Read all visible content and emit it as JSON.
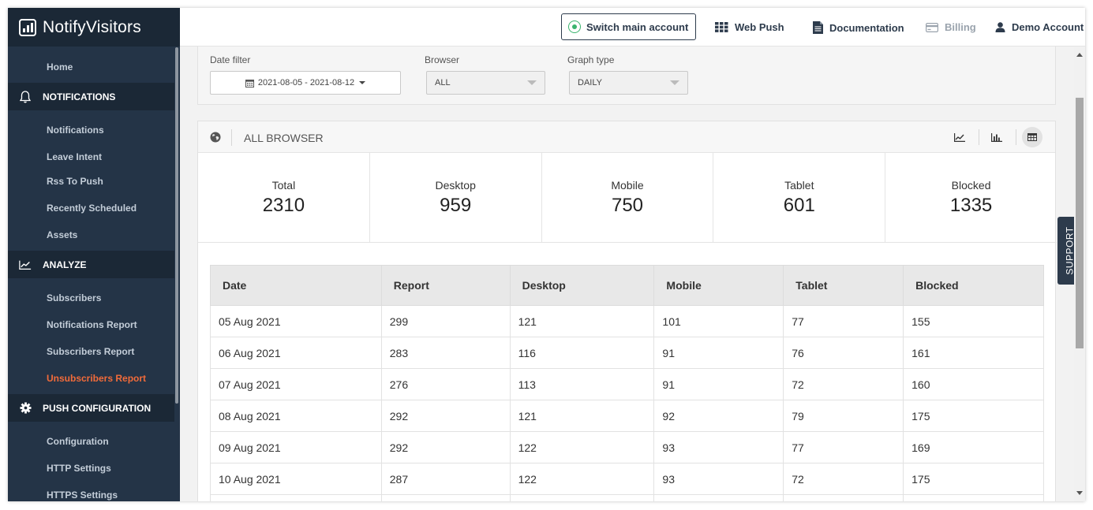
{
  "brand": {
    "name": "NotifyVisitors"
  },
  "sidebar": {
    "home": "Home",
    "notifications_section": "NOTIFICATIONS",
    "notifications_items": [
      "Notifications",
      "Leave Intent",
      "Rss To Push",
      "Recently Scheduled",
      "Assets"
    ],
    "analyze_section": "ANALYZE",
    "analyze_items": [
      "Subscribers",
      "Notifications Report",
      "Subscribers Report",
      "Unsubscribers Report"
    ],
    "push_section": "PUSH CONFIGURATION",
    "push_items": [
      "Configuration",
      "HTTP Settings",
      "HTTPS Settings"
    ],
    "active_color": "#f26b3a"
  },
  "topbar": {
    "switch_label": "Switch main account",
    "web_push": "Web Push",
    "documentation": "Documentation",
    "billing": "Billing",
    "account": "Demo Account"
  },
  "filters": {
    "date_label": "Date filter",
    "date_value": "2021-08-05 - 2021-08-12",
    "browser_label": "Browser",
    "browser_value": "ALL",
    "graph_label": "Graph type",
    "graph_value": "DAILY"
  },
  "panel": {
    "title": "ALL BROWSER",
    "icons": [
      "globe-icon",
      "line-chart-icon",
      "bar-chart-icon",
      "table-icon"
    ]
  },
  "stats": [
    {
      "label": "Total",
      "value": "2310"
    },
    {
      "label": "Desktop",
      "value": "959"
    },
    {
      "label": "Mobile",
      "value": "750"
    },
    {
      "label": "Tablet",
      "value": "601"
    },
    {
      "label": "Blocked",
      "value": "1335"
    }
  ],
  "table": {
    "headers": [
      "Date",
      "Report",
      "Desktop",
      "Mobile",
      "Tablet",
      "Blocked"
    ],
    "rows": [
      [
        "05 Aug 2021",
        "299",
        "121",
        "101",
        "77",
        "155"
      ],
      [
        "06 Aug 2021",
        "283",
        "116",
        "91",
        "76",
        "161"
      ],
      [
        "07 Aug 2021",
        "276",
        "113",
        "91",
        "72",
        "160"
      ],
      [
        "08 Aug 2021",
        "292",
        "121",
        "92",
        "79",
        "175"
      ],
      [
        "09 Aug 2021",
        "292",
        "122",
        "93",
        "77",
        "169"
      ],
      [
        "10 Aug 2021",
        "287",
        "122",
        "93",
        "72",
        "175"
      ],
      [
        "",
        "",
        "",
        "",
        "",
        ""
      ]
    ]
  },
  "support": {
    "label": "SUPPORT"
  }
}
